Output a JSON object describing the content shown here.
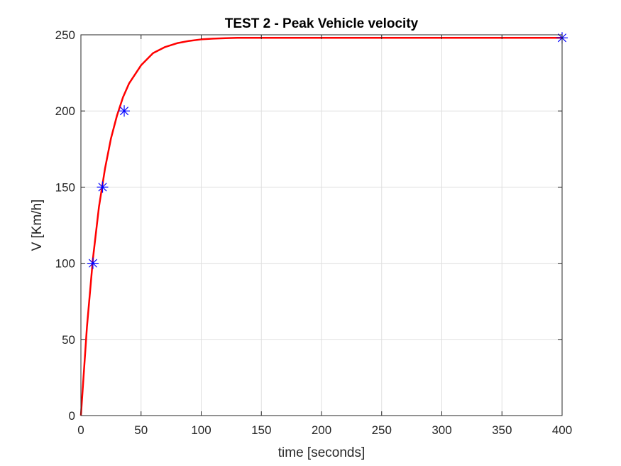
{
  "chart_data": {
    "type": "line",
    "title": "TEST 2 - Peak Vehicle velocity",
    "xlabel": "time [seconds]",
    "ylabel": "V [Km/h]",
    "xlim": [
      0,
      400
    ],
    "ylim": [
      0,
      250
    ],
    "xticks": [
      "0",
      "50",
      "100",
      "150",
      "200",
      "250",
      "300",
      "350",
      "400"
    ],
    "yticks": [
      "0",
      "50",
      "100",
      "150",
      "200",
      "250"
    ],
    "grid": true,
    "series": [
      {
        "style": "line",
        "color": "#ff0000",
        "x": [
          0,
          5,
          10,
          15,
          20,
          25,
          30,
          35,
          40,
          50,
          60,
          70,
          80,
          90,
          100,
          110,
          120,
          130,
          140,
          150,
          175,
          200,
          250,
          300,
          350,
          400
        ],
        "y": [
          0,
          58,
          103,
          137,
          162,
          182,
          197,
          209,
          218,
          230,
          238,
          242,
          244.5,
          246,
          247,
          247.5,
          247.8,
          248,
          248,
          248,
          248,
          248,
          248,
          248,
          248,
          248
        ]
      },
      {
        "style": "markers",
        "marker": "asterisk",
        "color": "#0000ff",
        "x": [
          10,
          18,
          36,
          400
        ],
        "y": [
          100,
          150,
          200,
          248
        ]
      }
    ]
  }
}
